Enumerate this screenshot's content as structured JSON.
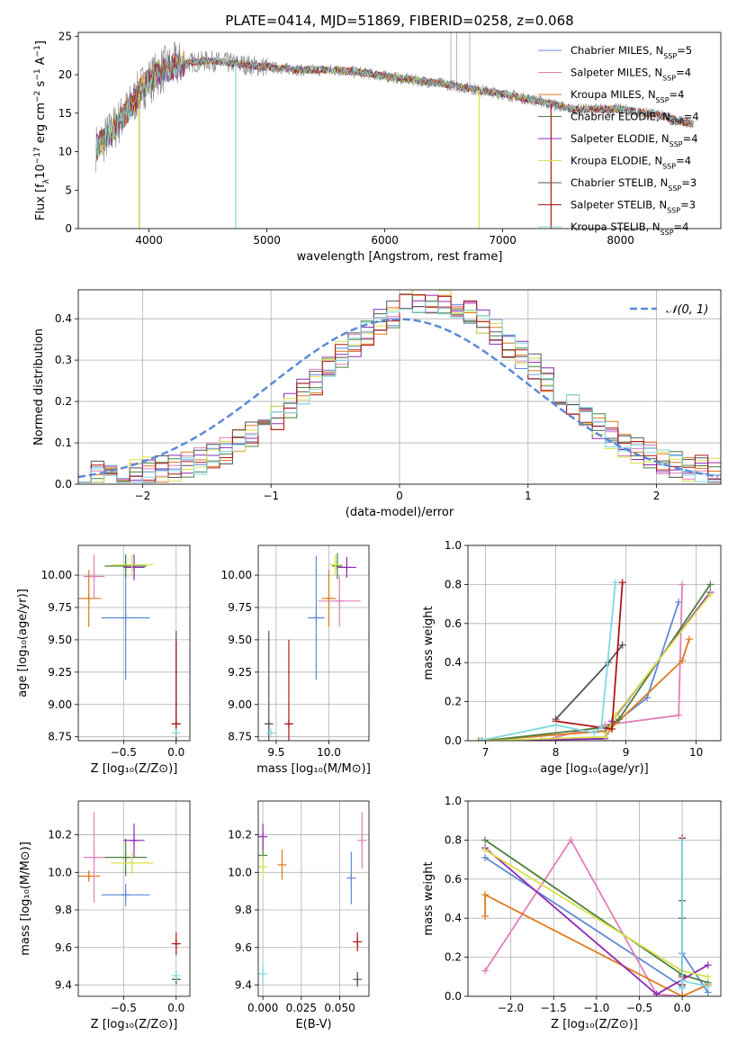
{
  "figure": {
    "title": "PLATE=0414, MJD=51869, FIBERID=0258, z=0.068"
  },
  "colors": {
    "CM": "#5e8ad6",
    "SM": "#e17fb8",
    "KM": "#e07a1f",
    "CE": "#4c7f3f",
    "SE": "#8e2ab4",
    "KE": "#d8e14a",
    "CS": "#555555",
    "SS": "#b01515",
    "KS": "#7fd8e0",
    "data": "#808080",
    "gauss": "#5b8ad8"
  },
  "chart_data": [
    {
      "id": "spectrum",
      "type": "line",
      "xlabel": "wavelength [Angstrom, rest frame]",
      "xlim": [
        3400,
        8850
      ],
      "ylim": [
        0,
        25.5
      ],
      "xticks": [
        4000,
        5000,
        6000,
        7000,
        8000
      ],
      "yticks": [
        0,
        5,
        10,
        15,
        20,
        25
      ],
      "ylabel_parts": [
        "Flux [f",
        "λ",
        "10",
        "−17",
        " erg cm",
        "−2",
        " s",
        "−1",
        " A",
        "−1",
        "]"
      ],
      "legend": [
        {
          "key": "CM",
          "label": "Chabrier MILES, N",
          "sub": "SSP",
          "suffix": "=5"
        },
        {
          "key": "SM",
          "label": "Salpeter MILES, N",
          "sub": "SSP",
          "suffix": "=4"
        },
        {
          "key": "KM",
          "label": "Kroupa MILES, N",
          "sub": "SSP",
          "suffix": "=4"
        },
        {
          "key": "CE",
          "label": "Chabrier ELODIE, N",
          "sub": "SSP",
          "suffix": "=4"
        },
        {
          "key": "SE",
          "label": "Salpeter ELODIE, N",
          "sub": "SSP",
          "suffix": "=4"
        },
        {
          "key": "KE",
          "label": "Kroupa ELODIE, N",
          "sub": "SSP",
          "suffix": "=4"
        },
        {
          "key": "CS",
          "label": "Chabrier STELIB, N",
          "sub": "SSP",
          "suffix": "=3"
        },
        {
          "key": "SS",
          "label": "Salpeter STELIB, N",
          "sub": "SSP",
          "suffix": "=3"
        },
        {
          "key": "KS",
          "label": "Kroupa STELIB, N",
          "sub": "SSP",
          "suffix": "=4"
        }
      ],
      "continuum": [
        [
          3550,
          10.5
        ],
        [
          3650,
          12
        ],
        [
          3750,
          14
        ],
        [
          3850,
          16
        ],
        [
          3950,
          18.5
        ],
        [
          4100,
          20.5
        ],
        [
          4300,
          21.5
        ],
        [
          4500,
          21.8
        ],
        [
          4700,
          21.5
        ],
        [
          5000,
          21.0
        ],
        [
          5300,
          20.6
        ],
        [
          5600,
          20.6
        ],
        [
          5800,
          20.3
        ],
        [
          6000,
          19.8
        ],
        [
          6200,
          19.4
        ],
        [
          6500,
          18.8
        ],
        [
          6800,
          18.0
        ],
        [
          7000,
          17.5
        ],
        [
          7300,
          16.6
        ],
        [
          7600,
          15.5
        ],
        [
          8000,
          15.5
        ],
        [
          8300,
          14.8
        ],
        [
          8600,
          13.6
        ]
      ],
      "data_spikes": [
        [
          3920,
          0
        ],
        [
          4340,
          22
        ],
        [
          6560,
          25.5
        ],
        [
          6610,
          25.5
        ],
        [
          6720,
          25.5
        ]
      ],
      "model_drops": [
        [
          3915,
          0,
          "KE"
        ],
        [
          4735,
          0,
          "KS"
        ],
        [
          6800,
          0,
          "KE"
        ],
        [
          7410,
          0,
          "SS"
        ]
      ]
    },
    {
      "id": "residual-hist",
      "type": "histogram",
      "xlabel": "(data-model)/error",
      "ylabel": "Normed distribution",
      "xlim": [
        -2.5,
        2.5
      ],
      "ylim": [
        0,
        0.47
      ],
      "xticks": [
        -2,
        -1,
        0,
        1,
        2
      ],
      "yticks": [
        0.0,
        0.1,
        0.2,
        0.3,
        0.4
      ],
      "bin_width": 0.1,
      "legend": [
        {
          "label": "𝒩(0, 1)"
        }
      ]
    },
    {
      "id": "age-vs-Z",
      "type": "errorbar",
      "xlabel": "Z [log₁₀(Z/Z⊙)]",
      "ylabel": "age  [log₁₀(age/yr)]",
      "xlim": [
        -0.93,
        0.13
      ],
      "ylim": [
        8.72,
        10.23
      ],
      "xticks": [
        -0.5,
        0.0
      ],
      "yticks": [
        8.75,
        9.0,
        9.25,
        9.5,
        9.75,
        10.0
      ],
      "points": [
        {
          "key": "CM",
          "x": -0.48,
          "y": 9.67,
          "xerr": 0.23,
          "yerr": 0.48
        },
        {
          "key": "SM",
          "x": -0.78,
          "y": 9.99,
          "xerr": 0.1,
          "yerr": 0.17
        },
        {
          "key": "KM",
          "x": -0.83,
          "y": 9.82,
          "xerr": 0.12,
          "yerr": 0.22
        },
        {
          "key": "CE",
          "x": -0.48,
          "y": 10.07,
          "xerr": 0.2,
          "yerr": 0.09
        },
        {
          "key": "SE",
          "x": -0.4,
          "y": 10.06,
          "xerr": 0.1,
          "yerr": 0.1
        },
        {
          "key": "KE",
          "x": -0.42,
          "y": 10.08,
          "xerr": 0.2,
          "yerr": 0.08
        },
        {
          "key": "CS",
          "x": 0.0,
          "y": 8.85,
          "xerr": 0.01,
          "yerr": 0.72
        },
        {
          "key": "SS",
          "x": 0.0,
          "y": 8.85,
          "xerr": 0.01,
          "yerr": 0.64
        },
        {
          "key": "KS",
          "x": 0.0,
          "y": 8.78,
          "xerr": 0.01,
          "yerr": 0.0
        }
      ]
    },
    {
      "id": "age-vs-mass",
      "type": "errorbar",
      "xlabel": "mass [log₁₀(M/M⊙)]",
      "xlim": [
        9.33,
        10.38
      ],
      "ylim": [
        8.72,
        10.23
      ],
      "xticks": [
        9.5,
        10.0
      ],
      "yticks": [
        8.75,
        9.0,
        9.25,
        9.5,
        9.75,
        10.0
      ],
      "points": [
        {
          "key": "CM",
          "x": 9.88,
          "y": 9.67,
          "xerr": 0.08,
          "yerr": 0.48
        },
        {
          "key": "SM",
          "x": 10.1,
          "y": 9.8,
          "xerr": 0.2,
          "yerr": 0.2
        },
        {
          "key": "KM",
          "x": 10.0,
          "y": 9.82,
          "xerr": 0.07,
          "yerr": 0.22
        },
        {
          "key": "CE",
          "x": 10.08,
          "y": 10.07,
          "xerr": 0.05,
          "yerr": 0.1
        },
        {
          "key": "SE",
          "x": 10.17,
          "y": 10.06,
          "xerr": 0.09,
          "yerr": 0.08
        },
        {
          "key": "KE",
          "x": 10.06,
          "y": 10.08,
          "xerr": 0.06,
          "yerr": 0.08
        },
        {
          "key": "CS",
          "x": 9.43,
          "y": 8.85,
          "xerr": 0.03,
          "yerr": 0.72
        },
        {
          "key": "SS",
          "x": 9.62,
          "y": 8.85,
          "xerr": 0.03,
          "yerr": 0.65
        },
        {
          "key": "KS",
          "x": 9.45,
          "y": 8.78,
          "xerr": 0.01,
          "yerr": 0.0
        }
      ]
    },
    {
      "id": "weight-vs-age",
      "type": "line",
      "xlabel": "age  [log₁₀(age/yr)]",
      "ylabel": "mass weight",
      "xlim": [
        6.75,
        10.35
      ],
      "ylim": [
        0,
        1.0
      ],
      "xticks": [
        7,
        8,
        9,
        10
      ],
      "yticks": [
        0.0,
        0.2,
        0.4,
        0.6,
        0.8,
        1.0
      ],
      "series": [
        {
          "key": "CM",
          "x": [
            6.95,
            8.7,
            9.3,
            9.75
          ],
          "y": [
            0.0,
            0.05,
            0.22,
            0.71
          ]
        },
        {
          "key": "SM",
          "x": [
            7.8,
            8.7,
            9.75,
            9.8
          ],
          "y": [
            0.0,
            0.08,
            0.13,
            0.8
          ]
        },
        {
          "key": "KM",
          "x": [
            6.9,
            8.75,
            9.8,
            9.9
          ],
          "y": [
            0.0,
            0.05,
            0.41,
            0.52
          ]
        },
        {
          "key": "CE",
          "x": [
            7.0,
            8.75,
            8.9,
            10.2
          ],
          "y": [
            0.0,
            0.07,
            0.11,
            0.8
          ]
        },
        {
          "key": "SE",
          "x": [
            7.0,
            8.7,
            8.8,
            10.2
          ],
          "y": [
            0.0,
            0.01,
            0.1,
            0.76
          ]
        },
        {
          "key": "KE",
          "x": [
            7.0,
            8.7,
            8.85,
            10.2
          ],
          "y": [
            0.0,
            0.02,
            0.13,
            0.75
          ]
        },
        {
          "key": "CS",
          "x": [
            8.0,
            8.75,
            8.95
          ],
          "y": [
            0.11,
            0.4,
            0.49
          ]
        },
        {
          "key": "SS",
          "x": [
            8.0,
            8.8,
            8.95
          ],
          "y": [
            0.1,
            0.06,
            0.81
          ]
        },
        {
          "key": "KS",
          "x": [
            6.92,
            8.0,
            8.55,
            8.65,
            8.85
          ],
          "y": [
            0.0,
            0.08,
            0.04,
            0.07,
            0.81
          ]
        }
      ]
    },
    {
      "id": "mass-vs-Z",
      "type": "errorbar",
      "xlabel": "Z [log₁₀(Z/Z⊙)]",
      "ylabel": "mass [log₁₀(M/M⊙)]",
      "xlim": [
        -0.93,
        0.13
      ],
      "ylim": [
        9.34,
        10.38
      ],
      "xticks": [
        -0.5,
        0.0
      ],
      "yticks": [
        9.4,
        9.6,
        9.8,
        10.0,
        10.2
      ],
      "points": [
        {
          "key": "CM",
          "x": -0.48,
          "y": 9.88,
          "xerr": 0.23,
          "yerr": 0.06
        },
        {
          "key": "SM",
          "x": -0.78,
          "y": 10.08,
          "xerr": 0.1,
          "yerr": 0.24
        },
        {
          "key": "KM",
          "x": -0.83,
          "y": 9.98,
          "xerr": 0.11,
          "yerr": 0.03
        },
        {
          "key": "CE",
          "x": -0.48,
          "y": 10.08,
          "xerr": 0.2,
          "yerr": 0.1
        },
        {
          "key": "SE",
          "x": -0.4,
          "y": 10.17,
          "xerr": 0.1,
          "yerr": 0.09
        },
        {
          "key": "KE",
          "x": -0.42,
          "y": 10.05,
          "xerr": 0.2,
          "yerr": 0.06
        },
        {
          "key": "CS",
          "x": 0.0,
          "y": 9.43,
          "xerr": 0.03,
          "yerr": 0.02
        },
        {
          "key": "SS",
          "x": 0.0,
          "y": 9.62,
          "xerr": 0.03,
          "yerr": 0.06
        },
        {
          "key": "KS",
          "x": 0.0,
          "y": 9.45,
          "xerr": 0.01,
          "yerr": 0.03
        }
      ]
    },
    {
      "id": "mass-vs-ebv",
      "type": "errorbar",
      "xlabel": "E(B-V)",
      "xlim": [
        -0.003,
        0.069
      ],
      "ylim": [
        9.34,
        10.38
      ],
      "xticks": [
        0.0,
        0.025,
        0.05
      ],
      "xticklabels": [
        "0.000",
        "0.025",
        "0.050"
      ],
      "yticks": [
        9.4,
        9.6,
        9.8,
        10.0,
        10.2
      ],
      "points": [
        {
          "key": "CM",
          "x": 0.0575,
          "y": 9.97,
          "xerr": 0.0,
          "yerr": 0.14
        },
        {
          "key": "SM",
          "x": 0.0645,
          "y": 10.17,
          "xerr": 0.0,
          "yerr": 0.15
        },
        {
          "key": "KM",
          "x": 0.0125,
          "y": 10.04,
          "xerr": 0.0,
          "yerr": 0.08
        },
        {
          "key": "CE",
          "x": 0.0,
          "y": 10.09,
          "xerr": 0.0,
          "yerr": 0.08
        },
        {
          "key": "SE",
          "x": 0.0,
          "y": 10.19,
          "xerr": 0.0,
          "yerr": 0.07
        },
        {
          "key": "KE",
          "x": 0.0,
          "y": 10.03,
          "xerr": 0.0,
          "yerr": 0.06
        },
        {
          "key": "CS",
          "x": 0.0615,
          "y": 9.43,
          "xerr": 0.0,
          "yerr": 0.04
        },
        {
          "key": "SS",
          "x": 0.0615,
          "y": 9.63,
          "xerr": 0.0,
          "yerr": 0.05
        },
        {
          "key": "KS",
          "x": 0.0,
          "y": 9.46,
          "xerr": 0.0,
          "yerr": 0.06
        }
      ]
    },
    {
      "id": "weight-vs-Z",
      "type": "line",
      "xlabel": "Z [log₁₀(Z/Z⊙)]",
      "ylabel": "mass weight",
      "xlim": [
        -2.5,
        0.45
      ],
      "ylim": [
        0,
        1.0
      ],
      "xticks": [
        -2.0,
        -1.5,
        -1.0,
        -0.5,
        0.0
      ],
      "yticks": [
        0.0,
        0.2,
        0.4,
        0.6,
        0.8,
        1.0
      ],
      "series": [
        {
          "key": "CM",
          "x": [
            -2.3,
            0.0,
            0.0,
            0.3
          ],
          "y": [
            0.71,
            0.05,
            0.22,
            0.02
          ]
        },
        {
          "key": "SM",
          "x": [
            -2.3,
            -1.3,
            -0.3,
            0.0,
            0.0
          ],
          "y": [
            0.13,
            0.8,
            0.01,
            0.0,
            0.08
          ]
        },
        {
          "key": "KM",
          "x": [
            -2.3,
            -2.3,
            0.0,
            0.3
          ],
          "y": [
            0.41,
            0.52,
            0.0,
            0.06
          ]
        },
        {
          "key": "CE",
          "x": [
            -2.3,
            0.0,
            0.3
          ],
          "y": [
            0.8,
            0.11,
            0.07
          ]
        },
        {
          "key": "SE",
          "x": [
            -2.3,
            -0.3,
            0.3
          ],
          "y": [
            0.76,
            0.01,
            0.16
          ]
        },
        {
          "key": "KE",
          "x": [
            -2.3,
            0.0,
            0.3
          ],
          "y": [
            0.75,
            0.13,
            0.1
          ]
        },
        {
          "key": "CS",
          "x": [
            0.0,
            0.0,
            0.0
          ],
          "y": [
            0.4,
            0.49,
            0.11
          ]
        },
        {
          "key": "SS",
          "x": [
            0.0,
            0.0,
            0.0
          ],
          "y": [
            0.81,
            0.06,
            0.1
          ]
        },
        {
          "key": "KS",
          "x": [
            0.0,
            0.0,
            0.0,
            0.3
          ],
          "y": [
            0.8,
            0.04,
            0.08,
            0.05
          ]
        }
      ]
    }
  ]
}
